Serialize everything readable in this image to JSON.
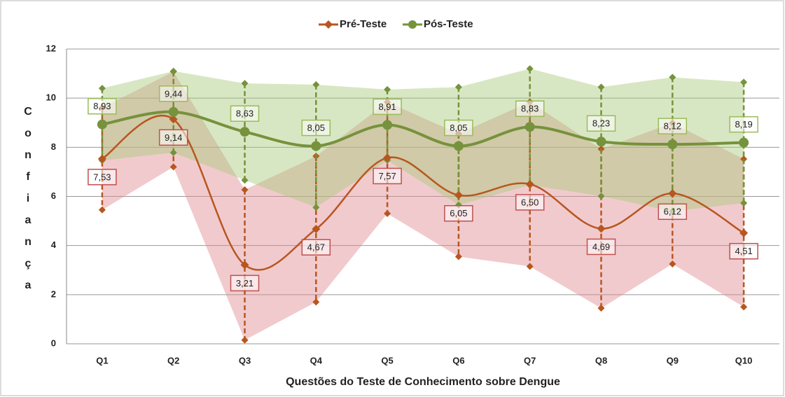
{
  "chart_data": {
    "type": "line",
    "x_label": "Questões do Teste de Conhecimento sobre Dengue",
    "y_label": "Confiança",
    "categories": [
      "Q1",
      "Q2",
      "Q3",
      "Q4",
      "Q5",
      "Q6",
      "Q7",
      "Q8",
      "Q9",
      "Q10"
    ],
    "series": [
      {
        "name": "Pré-Teste",
        "color": "#b8561f",
        "band_color": "#e08a92",
        "values": [
          7.53,
          9.14,
          3.21,
          4.67,
          7.57,
          6.05,
          6.5,
          4.69,
          6.12,
          4.51
        ],
        "value_labels": [
          "7,53",
          "9,14",
          "3,21",
          "4,67",
          "7,57",
          "6,05",
          "6,50",
          "4,69",
          "6,12",
          "4,51"
        ],
        "errors": [
          2.08,
          1.94,
          3.06,
          2.97,
          2.27,
          2.5,
          3.35,
          3.24,
          2.87,
          3.01
        ]
      },
      {
        "name": "Pós-Teste",
        "color": "#76923c",
        "band_color": "#a9c97a",
        "values": [
          8.93,
          9.44,
          8.63,
          8.05,
          8.91,
          8.05,
          8.83,
          8.23,
          8.12,
          8.19
        ],
        "value_labels": [
          "8,93",
          "9,44",
          "8,63",
          "8,05",
          "8,91",
          "8,05",
          "8,83",
          "8,23",
          "8,12",
          "8,19"
        ],
        "errors": [
          1.47,
          1.66,
          1.97,
          2.5,
          1.44,
          2.4,
          2.37,
          2.22,
          2.73,
          2.46
        ]
      }
    ],
    "ylim": [
      0,
      12
    ],
    "yticks": [
      0,
      2,
      4,
      6,
      8,
      10,
      12
    ],
    "grid": true,
    "legend": "top"
  }
}
